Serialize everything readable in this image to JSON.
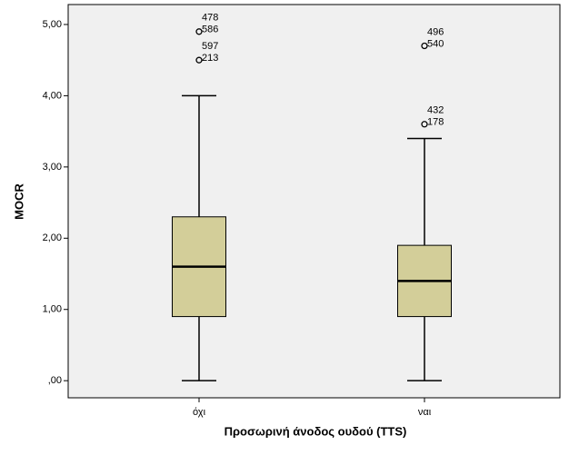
{
  "chart_data": {
    "type": "box",
    "x_label": "Προσωρινή άνοδος ουδού (TTS)",
    "y_label": "MOCR",
    "categories": [
      "όχι",
      "ναι"
    ],
    "series": [
      {
        "name": "όχι",
        "whisker_low": 0,
        "q1": 0.9,
        "median": 1.6,
        "q3": 2.3,
        "whisker_high": 4.0,
        "outliers": [
          {
            "value": 4.9,
            "ids": [
              "478",
              "586"
            ]
          },
          {
            "value": 4.5,
            "ids": [
              "597",
              "213"
            ]
          }
        ]
      },
      {
        "name": "ναι",
        "whisker_low": 0,
        "q1": 0.9,
        "median": 1.4,
        "q3": 1.9,
        "whisker_high": 3.4,
        "outliers": [
          {
            "value": 4.7,
            "ids": [
              "496",
              "540"
            ]
          },
          {
            "value": 3.6,
            "ids": [
              "432",
              "178"
            ]
          }
        ]
      }
    ],
    "color": "#d3ce99",
    "ylim": [
      -0.24,
      5.28
    ],
    "yticks": [
      {
        "value": 0,
        "label": ",00"
      },
      {
        "value": 1,
        "label": "1,00"
      },
      {
        "value": 2,
        "label": "2,00"
      },
      {
        "value": 3,
        "label": "3,00"
      },
      {
        "value": 4,
        "label": "4,00"
      },
      {
        "value": 5,
        "label": "5,00"
      }
    ]
  }
}
